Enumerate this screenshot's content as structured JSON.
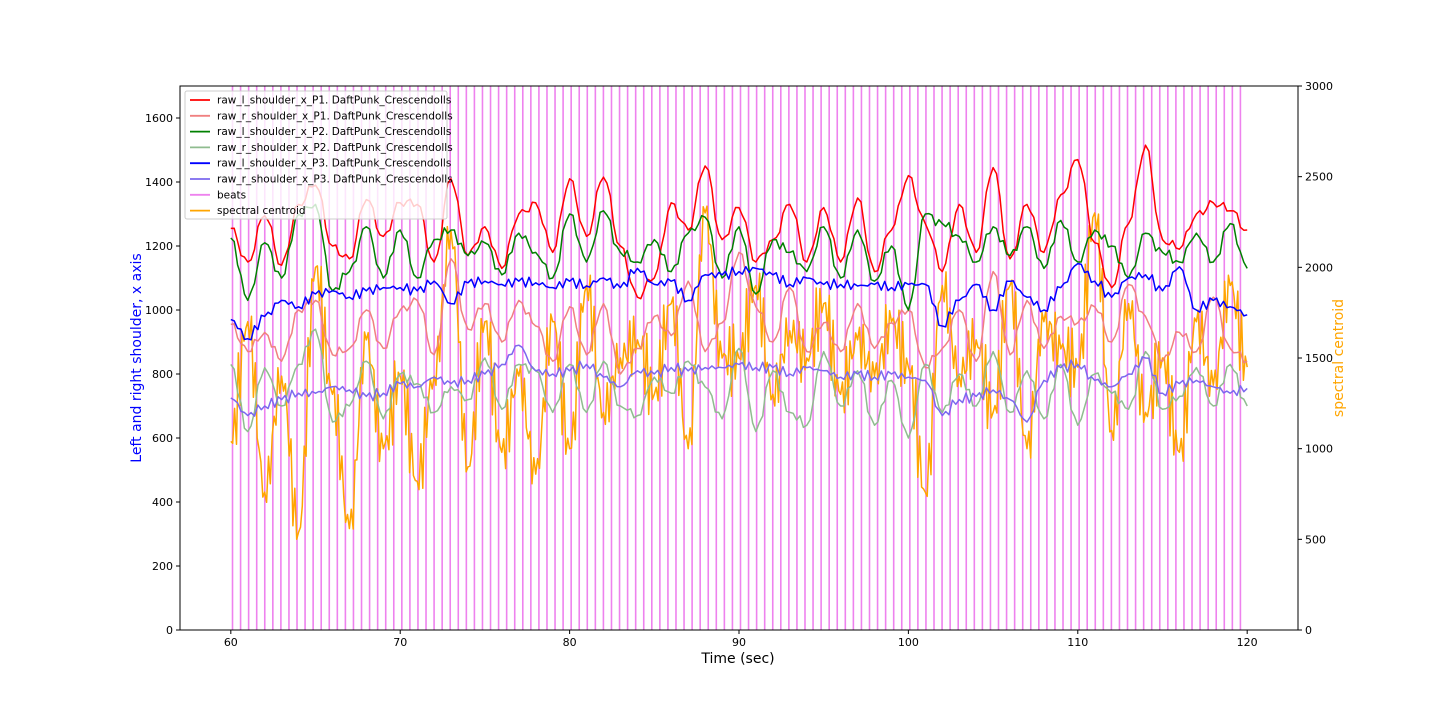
{
  "chart_data": {
    "type": "line",
    "title": "",
    "xlabel": "Time (sec)",
    "ylabel": "Left and right shoulder, x axis",
    "ylabel_right": "spectral centroid",
    "xlim": [
      57,
      123
    ],
    "ylim": [
      0,
      1700
    ],
    "ylim_right": [
      0,
      3000
    ],
    "x_ticks": [
      60,
      70,
      80,
      90,
      100,
      110,
      120
    ],
    "y_ticks": [
      0,
      200,
      400,
      600,
      800,
      1000,
      1200,
      1400,
      1600
    ],
    "y_ticks_right": [
      0,
      500,
      1000,
      1500,
      2000,
      2500,
      3000
    ],
    "grid": false,
    "legend_position": "top-left",
    "colors": {
      "ylabel": "#0000ff",
      "ylabel_right": "#ffa500"
    },
    "beats": {
      "name": "beats",
      "color": "#ee82ee",
      "start": 60.1,
      "end": 119.7,
      "interval": 0.476
    },
    "series": [
      {
        "name": "raw_l_shoulder_x_P1. DaftPunk_Crescendolls",
        "color": "#ff0000",
        "opacity": 1,
        "axis": "left",
        "x": [
          60,
          61,
          62,
          63,
          64,
          65,
          66,
          67,
          68,
          69,
          70,
          71,
          72,
          73,
          74,
          75,
          76,
          77,
          78,
          79,
          80,
          81,
          82,
          83,
          84,
          85,
          86,
          87,
          88,
          89,
          90,
          91,
          92,
          93,
          94,
          95,
          96,
          97,
          98,
          99,
          100,
          101,
          102,
          103,
          104,
          105,
          106,
          107,
          108,
          109,
          110,
          111,
          112,
          113,
          114,
          115,
          116,
          117,
          118,
          119,
          120
        ],
        "y": [
          1255,
          1150,
          1295,
          1140,
          1330,
          1390,
          1200,
          1160,
          1345,
          1230,
          1335,
          1330,
          1150,
          1410,
          1170,
          1260,
          1130,
          1300,
          1335,
          1180,
          1410,
          1230,
          1415,
          1200,
          1040,
          1100,
          1335,
          1250,
          1450,
          1220,
          1320,
          1150,
          1220,
          1330,
          1150,
          1320,
          1150,
          1350,
          1120,
          1250,
          1420,
          1270,
          1120,
          1330,
          1180,
          1445,
          1160,
          1330,
          1180,
          1360,
          1470,
          1210,
          1070,
          1270,
          1515,
          1220,
          1190,
          1300,
          1335,
          1310,
          1250
        ]
      },
      {
        "name": "raw_r_shoulder_x_P1. DaftPunk_Crescendolls",
        "color": "#f08080",
        "opacity": 1,
        "axis": "left",
        "x": [
          60,
          61,
          62,
          63,
          64,
          65,
          66,
          67,
          68,
          69,
          70,
          71,
          72,
          73,
          74,
          75,
          76,
          77,
          78,
          79,
          80,
          81,
          82,
          83,
          84,
          85,
          86,
          87,
          88,
          89,
          90,
          91,
          92,
          93,
          94,
          95,
          96,
          97,
          98,
          99,
          100,
          101,
          102,
          103,
          104,
          105,
          106,
          107,
          108,
          109,
          110,
          111,
          112,
          113,
          114,
          115,
          116,
          117,
          118,
          119,
          120
        ],
        "y": [
          955,
          870,
          930,
          840,
          1000,
          1030,
          860,
          880,
          1000,
          880,
          1000,
          1030,
          860,
          1160,
          940,
          1020,
          900,
          1030,
          950,
          840,
          1010,
          860,
          1020,
          800,
          880,
          980,
          920,
          1090,
          870,
          960,
          1180,
          1010,
          900,
          1070,
          870,
          960,
          870,
          1020,
          880,
          960,
          1000,
          820,
          880,
          1000,
          840,
          1120,
          860,
          1030,
          880,
          980,
          960,
          1010,
          900,
          1080,
          980,
          840,
          930,
          870,
          1040,
          880,
          840
        ]
      },
      {
        "name": "raw_l_shoulder_x_P2. DaftPunk_Crescendolls",
        "color": "#008000",
        "opacity": 1,
        "axis": "left",
        "x": [
          60,
          61,
          62,
          63,
          64,
          65,
          66,
          67,
          68,
          69,
          70,
          71,
          72,
          73,
          74,
          75,
          76,
          77,
          78,
          79,
          80,
          81,
          82,
          83,
          84,
          85,
          86,
          87,
          88,
          89,
          90,
          91,
          92,
          93,
          94,
          95,
          96,
          97,
          98,
          99,
          100,
          101,
          102,
          103,
          104,
          105,
          106,
          107,
          108,
          109,
          110,
          111,
          112,
          113,
          114,
          115,
          116,
          117,
          118,
          119,
          120
        ],
        "y": [
          1225,
          1030,
          1210,
          1100,
          1300,
          1330,
          1060,
          1120,
          1260,
          1100,
          1250,
          1100,
          1220,
          1250,
          1170,
          1210,
          1110,
          1240,
          1180,
          1100,
          1300,
          1150,
          1310,
          1180,
          1150,
          1220,
          1120,
          1240,
          1290,
          1100,
          1260,
          1050,
          1220,
          1180,
          1120,
          1260,
          1100,
          1250,
          1090,
          1200,
          1000,
          1300,
          1270,
          1230,
          1150,
          1260,
          1170,
          1260,
          1130,
          1280,
          1150,
          1250,
          1200,
          1100,
          1240,
          1180,
          1150,
          1240,
          1150,
          1270,
          1130
        ]
      },
      {
        "name": "raw_r_shoulder_x_P2. DaftPunk_Crescendolls",
        "color": "#8fbc8f",
        "opacity": 1,
        "axis": "left",
        "x": [
          60,
          61,
          62,
          63,
          64,
          65,
          66,
          67,
          68,
          69,
          70,
          71,
          72,
          73,
          74,
          75,
          76,
          77,
          78,
          79,
          80,
          81,
          82,
          83,
          84,
          85,
          86,
          87,
          88,
          89,
          90,
          91,
          92,
          93,
          94,
          95,
          96,
          97,
          98,
          99,
          100,
          101,
          102,
          103,
          104,
          105,
          106,
          107,
          108,
          109,
          110,
          111,
          112,
          113,
          114,
          115,
          116,
          117,
          118,
          119,
          120
        ],
        "y": [
          830,
          620,
          820,
          700,
          830,
          940,
          650,
          700,
          840,
          660,
          800,
          770,
          680,
          760,
          720,
          850,
          690,
          830,
          810,
          680,
          830,
          680,
          840,
          700,
          670,
          790,
          740,
          840,
          760,
          660,
          880,
          620,
          810,
          680,
          640,
          870,
          700,
          810,
          640,
          780,
          600,
          830,
          680,
          800,
          700,
          870,
          680,
          810,
          660,
          830,
          640,
          800,
          740,
          690,
          870,
          690,
          730,
          820,
          700,
          830,
          700
        ]
      },
      {
        "name": "raw_l_shoulder_x_P3. DaftPunk_Crescendolls",
        "color": "#0000ff",
        "opacity": 1,
        "axis": "left",
        "x": [
          60,
          61,
          62,
          63,
          64,
          65,
          66,
          67,
          68,
          69,
          70,
          71,
          72,
          73,
          74,
          75,
          76,
          77,
          78,
          79,
          80,
          81,
          82,
          83,
          84,
          85,
          86,
          87,
          88,
          89,
          90,
          91,
          92,
          93,
          94,
          95,
          96,
          97,
          98,
          99,
          100,
          101,
          102,
          103,
          104,
          105,
          106,
          107,
          108,
          109,
          110,
          111,
          112,
          113,
          114,
          115,
          116,
          117,
          118,
          119,
          120
        ],
        "y": [
          970,
          910,
          980,
          1030,
          1010,
          1050,
          1060,
          1040,
          1060,
          1070,
          1070,
          1060,
          1090,
          1020,
          1085,
          1090,
          1080,
          1090,
          1085,
          1070,
          1090,
          1075,
          1100,
          1070,
          1130,
          1080,
          1090,
          1030,
          1110,
          1110,
          1120,
          1130,
          1110,
          1080,
          1100,
          1080,
          1080,
          1075,
          1080,
          1070,
          1080,
          1080,
          950,
          1030,
          1080,
          1000,
          1090,
          1040,
          1000,
          1070,
          1145,
          1090,
          1040,
          1100,
          1110,
          1060,
          1135,
          1000,
          1030,
          1010,
          985
        ]
      },
      {
        "name": "raw_r_shoulder_x_P3. DaftPunk_Crescendolls",
        "color": "#7b68ee",
        "opacity": 1,
        "axis": "left",
        "x": [
          60,
          61,
          62,
          63,
          64,
          65,
          66,
          67,
          68,
          69,
          70,
          71,
          72,
          73,
          74,
          75,
          76,
          77,
          78,
          79,
          80,
          81,
          82,
          83,
          84,
          85,
          86,
          87,
          88,
          89,
          90,
          91,
          92,
          93,
          94,
          95,
          96,
          97,
          98,
          99,
          100,
          101,
          102,
          103,
          104,
          105,
          106,
          107,
          108,
          109,
          110,
          111,
          112,
          113,
          114,
          115,
          116,
          117,
          118,
          119,
          120
        ],
        "y": [
          725,
          670,
          700,
          720,
          740,
          740,
          760,
          750,
          730,
          740,
          770,
          760,
          790,
          770,
          780,
          800,
          830,
          890,
          810,
          800,
          810,
          830,
          790,
          760,
          810,
          800,
          820,
          810,
          820,
          820,
          830,
          820,
          820,
          800,
          820,
          810,
          790,
          800,
          790,
          800,
          790,
          780,
          670,
          720,
          730,
          750,
          720,
          650,
          780,
          820,
          830,
          780,
          760,
          800,
          850,
          740,
          770,
          780,
          760,
          740,
          755
        ]
      },
      {
        "name": "spectral centroid",
        "color": "#ffa500",
        "opacity": 1,
        "axis": "right",
        "x": [
          60,
          61,
          62,
          63,
          64,
          65,
          66,
          67,
          68,
          69,
          70,
          71,
          72,
          73,
          74,
          75,
          76,
          77,
          78,
          79,
          80,
          81,
          82,
          83,
          84,
          85,
          86,
          87,
          88,
          89,
          90,
          91,
          92,
          93,
          94,
          95,
          96,
          97,
          98,
          99,
          100,
          101,
          102,
          103,
          104,
          105,
          106,
          107,
          108,
          109,
          110,
          111,
          112,
          113,
          114,
          115,
          116,
          117,
          118,
          119,
          120
        ],
        "y": [
          1040,
          1700,
          760,
          1400,
          540,
          2000,
          1300,
          560,
          1600,
          1000,
          1400,
          820,
          1400,
          2200,
          900,
          1700,
          980,
          1400,
          860,
          1700,
          1000,
          1900,
          1200,
          1500,
          1600,
          1300,
          1800,
          1000,
          2300,
          1500,
          1500,
          1900,
          1300,
          1650,
          1500,
          1800,
          1300,
          1600,
          1400,
          1700,
          1450,
          760,
          1900,
          1400,
          1600,
          1200,
          1900,
          1000,
          1700,
          1550,
          1450,
          2300,
          1100,
          1800,
          1200,
          1500,
          980,
          1700,
          1350,
          1900,
          1450
        ]
      }
    ]
  }
}
